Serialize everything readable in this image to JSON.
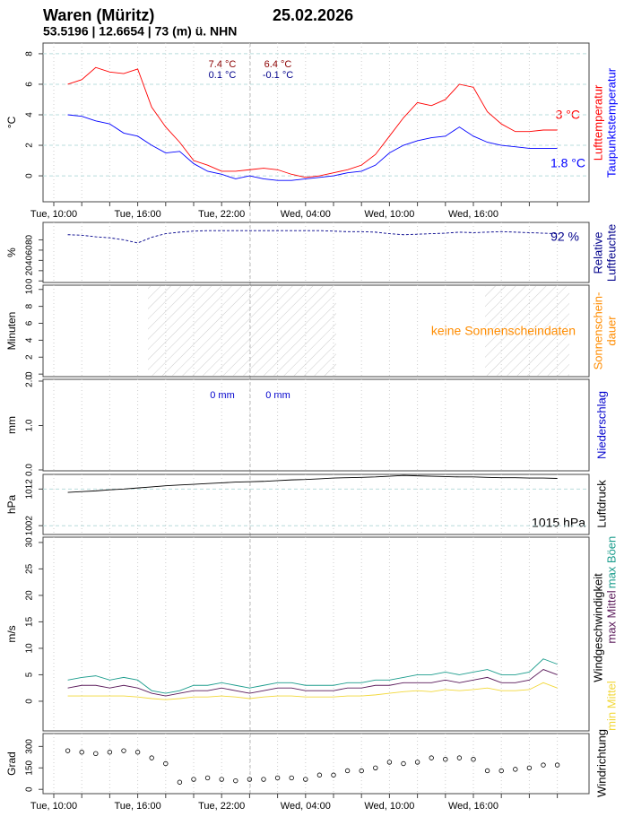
{
  "header": {
    "title": "Waren (Müritz)",
    "date": "25.02.2026",
    "subtitle": "53.5196 | 12.6654 | 73 (m) ü. NHN"
  },
  "chart_data": [
    {
      "type": "line",
      "ylabel": "°C",
      "side_labels": [
        "Lufttemperatur",
        "Taupunktstemperatur"
      ],
      "categories": [
        "Tue, 10:00",
        null,
        null,
        null,
        null,
        null,
        "Tue, 16:00",
        null,
        null,
        null,
        null,
        null,
        "Tue, 22:00",
        null,
        null,
        null,
        null,
        null,
        "Wed, 04:00",
        null,
        null,
        null,
        null,
        null,
        "Wed, 10:00",
        null,
        null,
        null,
        null,
        null,
        "Wed, 16:00",
        null,
        null,
        null,
        null,
        null,
        null
      ],
      "ylim": [
        -1.7,
        8.7
      ],
      "yticks": [
        0,
        2,
        4,
        6,
        8
      ],
      "grid": true,
      "series": [
        {
          "name": "Lufttemperatur",
          "color": "#ff0000",
          "values": [
            null,
            6.0,
            6.3,
            7.1,
            6.8,
            6.7,
            7.0,
            4.5,
            3.2,
            2.2,
            1.0,
            0.7,
            0.3,
            0.3,
            0.4,
            0.5,
            0.4,
            0.1,
            -0.1,
            0.0,
            0.2,
            0.4,
            0.7,
            1.4,
            2.6,
            3.8,
            4.8,
            4.6,
            5.0,
            6.0,
            5.8,
            4.2,
            3.4,
            2.9,
            2.9,
            3.0,
            3.0
          ]
        },
        {
          "name": "Taupunktstemperatur",
          "color": "#0000ff",
          "values": [
            null,
            4.0,
            3.9,
            3.6,
            3.4,
            2.8,
            2.6,
            2.0,
            1.5,
            1.6,
            0.8,
            0.3,
            0.1,
            -0.2,
            0.0,
            -0.2,
            -0.3,
            -0.3,
            -0.2,
            -0.1,
            0.0,
            0.2,
            0.3,
            0.7,
            1.5,
            2.0,
            2.3,
            2.5,
            2.6,
            3.2,
            2.6,
            2.2,
            2.0,
            1.9,
            1.8,
            1.8,
            1.8
          ]
        }
      ],
      "annotations": [
        "7.4 °C",
        "0.1 °C",
        "6.4 °C",
        "-0.1 °C",
        "3 °C",
        "1.8 °C"
      ]
    },
    {
      "type": "line",
      "ylabel": "%",
      "side_labels": [
        "Relative",
        "Luftfeuchte"
      ],
      "ylim": [
        -3,
        114
      ],
      "yticks": [
        0,
        20,
        40,
        60,
        80
      ],
      "series": [
        {
          "name": "Relative Luftfeuchte",
          "color": "#00008b",
          "dashed": true,
          "values": [
            null,
            90,
            89,
            86,
            84,
            80,
            74,
            85,
            92,
            95,
            97,
            98,
            98,
            98,
            98,
            98,
            98,
            98,
            98,
            98,
            97,
            96,
            96,
            95,
            92,
            90,
            91,
            92,
            93,
            95,
            94,
            95,
            96,
            95,
            94,
            93,
            92
          ]
        }
      ],
      "annotations": [
        "92 %"
      ]
    },
    {
      "type": "bar",
      "ylabel": "Minuten",
      "side_labels": [
        "Sonnenschein-",
        "dauer"
      ],
      "ylim": [
        -0.3,
        10.5
      ],
      "yticks": [
        0,
        2,
        4,
        6,
        8,
        10
      ],
      "annotations": [
        "keine Sonnenscheindaten"
      ]
    },
    {
      "type": "bar",
      "ylabel": "mm",
      "side_labels": [
        "Niederschlag"
      ],
      "ylim": [
        -0.02,
        2.04
      ],
      "yticks": [
        {
          "value": 0,
          "label": "0.0"
        },
        {
          "value": 1,
          "label": "1.0"
        },
        {
          "value": 2,
          "label": "2.0"
        }
      ],
      "annotations": [
        "0 mm",
        "0 mm"
      ]
    },
    {
      "type": "line",
      "ylabel": "hPa",
      "side_labels": [
        "Luftdruck"
      ],
      "ylim": [
        999.6,
        1016.0
      ],
      "yticks": [
        1002,
        1012
      ],
      "grid": true,
      "series": [
        {
          "name": "Luftdruck",
          "color": "#000000",
          "values": [
            null,
            1011.1,
            1011.3,
            1011.5,
            1011.8,
            1012.0,
            1012.3,
            1012.6,
            1012.9,
            1013.1,
            1013.3,
            1013.5,
            1013.7,
            1013.9,
            1014.0,
            1014.1,
            1014.3,
            1014.5,
            1014.6,
            1014.8,
            1015.0,
            1015.1,
            1015.2,
            1015.3,
            1015.5,
            1015.7,
            1015.6,
            1015.5,
            1015.4,
            1015.3,
            1015.3,
            1015.2,
            1015.1,
            1015.1,
            1015.0,
            1015.0,
            1014.9
          ]
        }
      ],
      "annotations": [
        "1015 hPa"
      ]
    },
    {
      "type": "line",
      "ylabel": "m/s",
      "side_labels": [
        "Windgeschwindigkeit"
      ],
      "ylim": [
        -5.6,
        31
      ],
      "yticks": [
        0,
        5,
        10,
        15,
        20,
        25,
        30
      ],
      "series": [
        {
          "name": "max Böen",
          "color": "#1a9c8c",
          "values": [
            null,
            4,
            4.5,
            4.8,
            4,
            4.5,
            4,
            2,
            1.5,
            2,
            3,
            3,
            3.5,
            3,
            2.5,
            3,
            3.5,
            3.5,
            3,
            3,
            3,
            3.5,
            3.5,
            4,
            4,
            4.5,
            5,
            5,
            5.5,
            5,
            5.5,
            6,
            5,
            5,
            5.5,
            8,
            7
          ]
        },
        {
          "name": "max Mittel",
          "color": "#5a1a5a",
          "values": [
            null,
            2.5,
            3,
            3,
            2.5,
            3,
            2.5,
            1.5,
            1,
            1.5,
            2,
            2,
            2.5,
            2,
            1.5,
            2,
            2.5,
            2.5,
            2,
            2,
            2,
            2.5,
            2.5,
            3,
            3,
            3.5,
            3.5,
            3.5,
            4,
            3.5,
            4,
            4.5,
            3.5,
            3.5,
            4,
            6,
            5
          ]
        },
        {
          "name": "min Mittel",
          "color": "#f2d83a",
          "values": [
            null,
            1,
            1,
            1,
            1,
            1,
            0.8,
            0.5,
            0.3,
            0.5,
            0.8,
            0.8,
            1,
            0.8,
            0.5,
            0.8,
            1,
            1,
            0.8,
            0.8,
            0.8,
            1,
            1,
            1.2,
            1.5,
            1.8,
            2,
            1.8,
            2.2,
            2,
            2.2,
            2.5,
            2,
            2,
            2.2,
            3.5,
            2.5
          ]
        }
      ]
    },
    {
      "type": "scatter",
      "ylabel": "Grad",
      "side_labels": [
        "Windrichtung"
      ],
      "categories": [
        "Tue, 10:00",
        null,
        null,
        null,
        null,
        null,
        "Tue, 16:00",
        null,
        null,
        null,
        null,
        null,
        "Tue, 22:00",
        null,
        null,
        null,
        null,
        null,
        "Wed, 04:00",
        null,
        null,
        null,
        null,
        null,
        "Wed, 10:00",
        null,
        null,
        null,
        null,
        null,
        "Wed, 16:00",
        null,
        null,
        null,
        null,
        null,
        null
      ],
      "ylim": [
        -30,
        390
      ],
      "yticks": [
        0,
        150,
        300
      ],
      "series": [
        {
          "name": "Windrichtung",
          "color": "#000000",
          "values": [
            null,
            270,
            260,
            250,
            260,
            270,
            260,
            220,
            180,
            50,
            70,
            80,
            70,
            60,
            70,
            70,
            80,
            80,
            70,
            100,
            100,
            130,
            130,
            150,
            190,
            180,
            190,
            220,
            210,
            220,
            210,
            130,
            130,
            140,
            150,
            170,
            170
          ]
        }
      ]
    }
  ]
}
